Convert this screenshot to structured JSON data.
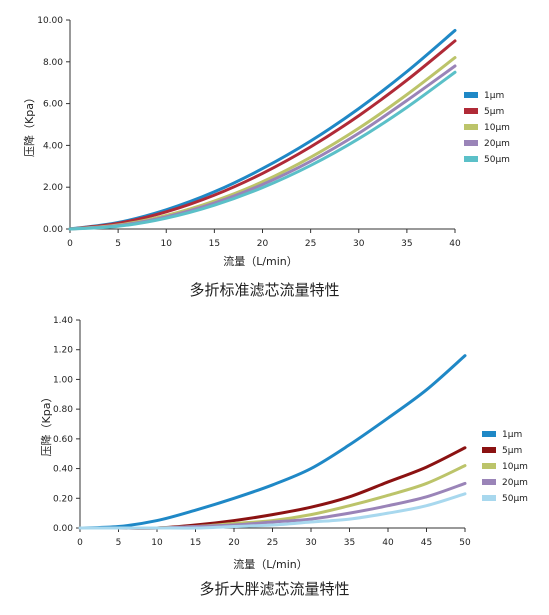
{
  "chart_data": [
    {
      "type": "line",
      "title": "多折标准滤芯流量特性",
      "xlabel": "流量（L/min）",
      "ylabel": "压降（Kpa）",
      "xlim": [
        0,
        40
      ],
      "ylim": [
        0,
        10
      ],
      "x_ticks": [
        "0",
        "5",
        "10",
        "15",
        "20",
        "25",
        "30",
        "35",
        "40"
      ],
      "y_ticks": [
        "0.00",
        "2.00",
        "4.00",
        "6.00",
        "8.00",
        "10.00"
      ],
      "grid": false,
      "legend_position": "right",
      "x": [
        0,
        5,
        10,
        15,
        20,
        25,
        30,
        35,
        40
      ],
      "series": [
        {
          "name": "1μm",
          "color": "#1f88c6",
          "values": [
            0,
            0.31,
            0.92,
            1.78,
            2.89,
            4.21,
            5.76,
            7.53,
            9.5
          ]
        },
        {
          "name": "5μm",
          "color": "#b02a37",
          "values": [
            0,
            0.27,
            0.82,
            1.62,
            2.66,
            3.93,
            5.42,
            7.12,
            9.0
          ]
        },
        {
          "name": "10μm",
          "color": "#bcc46a",
          "values": [
            0,
            0.19,
            0.65,
            1.34,
            2.26,
            3.43,
            4.82,
            6.43,
            8.2
          ]
        },
        {
          "name": "20μm",
          "color": "#9a84b8",
          "values": [
            0,
            0.16,
            0.58,
            1.24,
            2.13,
            3.24,
            4.58,
            6.15,
            7.8
          ]
        },
        {
          "name": "50μm",
          "color": "#5bc0c8",
          "values": [
            0,
            0.13,
            0.52,
            1.14,
            1.98,
            3.04,
            4.32,
            5.82,
            7.5
          ]
        }
      ]
    },
    {
      "type": "line",
      "title": "多折大胖滤芯流量特性",
      "xlabel": "流量（L/min）",
      "ylabel": "压降（Kpa）",
      "xlim": [
        0,
        50
      ],
      "ylim": [
        0,
        1.4
      ],
      "x_ticks": [
        "0",
        "5",
        "10",
        "15",
        "20",
        "25",
        "30",
        "35",
        "40",
        "45",
        "50"
      ],
      "y_ticks": [
        "0.00",
        "0.20",
        "0.40",
        "0.60",
        "0.80",
        "1.00",
        "1.20",
        "1.40"
      ],
      "grid": false,
      "legend_position": "right",
      "x": [
        0,
        5,
        10,
        15,
        20,
        25,
        30,
        35,
        40,
        45,
        50
      ],
      "series": [
        {
          "name": "1μm",
          "color": "#1f88c6",
          "values": [
            0,
            0.01,
            0.05,
            0.12,
            0.2,
            0.29,
            0.4,
            0.56,
            0.74,
            0.93,
            1.16
          ]
        },
        {
          "name": "5μm",
          "color": "#8b1212",
          "values": [
            0,
            0,
            0,
            0.02,
            0.05,
            0.09,
            0.14,
            0.21,
            0.31,
            0.41,
            0.54
          ]
        },
        {
          "name": "10μm",
          "color": "#bcc46a",
          "values": [
            0,
            0,
            0,
            0.01,
            0.03,
            0.05,
            0.09,
            0.15,
            0.22,
            0.3,
            0.42
          ]
        },
        {
          "name": "20μm",
          "color": "#9a84b8",
          "values": [
            0,
            0,
            0,
            0.01,
            0.02,
            0.04,
            0.06,
            0.1,
            0.15,
            0.21,
            0.3
          ]
        },
        {
          "name": "50μm",
          "color": "#a8d8ee",
          "values": [
            0,
            0,
            0,
            0,
            0.01,
            0.02,
            0.04,
            0.06,
            0.1,
            0.15,
            0.23
          ]
        }
      ]
    }
  ]
}
